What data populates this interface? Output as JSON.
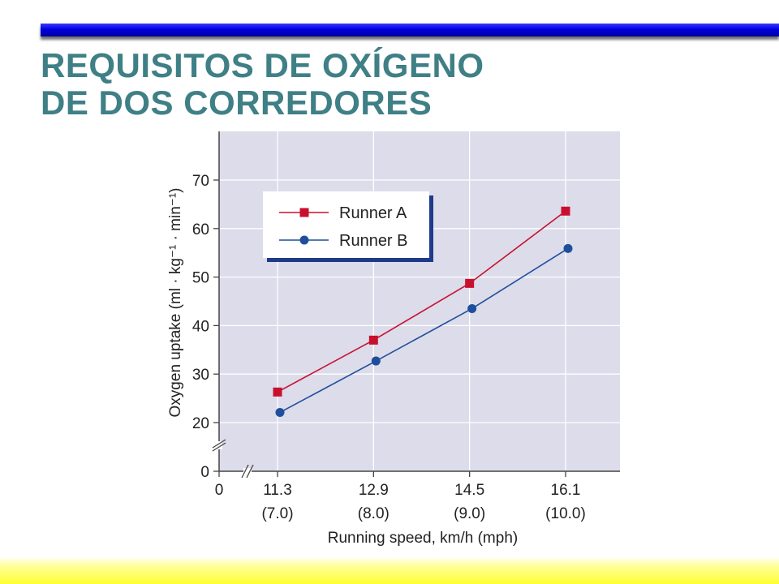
{
  "slide": {
    "title_line1": "REQUISITOS DE OXÍGENO",
    "title_line2": "DE DOS CORREDORES",
    "colors": {
      "title": "#3f7f86",
      "top_bar": "#0000e0",
      "bottom_band": "#ffff33"
    }
  },
  "chart_data": {
    "type": "line",
    "x_tick_labels": [
      "0",
      "11.3",
      "12.9",
      "14.5",
      "16.1"
    ],
    "x_tick_sublabels": [
      "",
      "(7.0)",
      "(8.0)",
      "(9.0)",
      "(10.0)"
    ],
    "xlabel": "Running speed, km/h (mph)",
    "ylabel": "Oxygen uptake (ml · kg⁻¹ · min⁻¹)",
    "y_ticks": [
      0,
      20,
      30,
      40,
      50,
      60,
      70
    ],
    "ylim": [
      0,
      70
    ],
    "axis_break": true,
    "grid": true,
    "legend_position": "top-left",
    "series": [
      {
        "name": "Runner A",
        "marker": "square",
        "color": "#c8102e",
        "x": [
          11.3,
          12.9,
          14.5,
          16.1
        ],
        "y": [
          26.3,
          37.0,
          48.7,
          63.6
        ]
      },
      {
        "name": "Runner B",
        "marker": "circle",
        "color": "#1f4e9c",
        "x": [
          11.3,
          12.9,
          14.5,
          16.1
        ],
        "y": [
          22.1,
          32.7,
          43.5,
          55.9
        ]
      }
    ]
  }
}
